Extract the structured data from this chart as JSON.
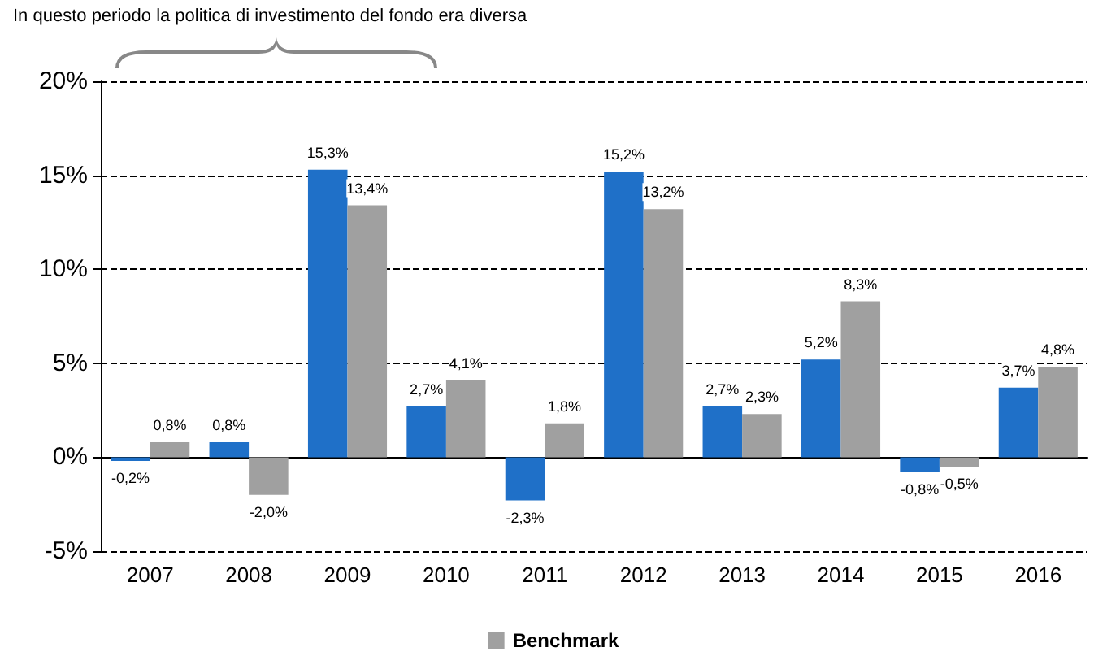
{
  "chart_data": {
    "type": "bar",
    "annotations": [
      "In questo periodo la politica di investimento del fondo era diversa"
    ],
    "categories": [
      "2007",
      "2008",
      "2009",
      "2010",
      "2011",
      "2012",
      "2013",
      "2014",
      "2015",
      "2016"
    ],
    "series": [
      {
        "color": "#1f70c8",
        "values": [
          -0.2,
          0.8,
          15.3,
          2.7,
          -2.3,
          15.2,
          2.7,
          5.2,
          -0.8,
          3.7
        ],
        "value_labels": [
          "-0,2%",
          "0,8%",
          "15,3%",
          "2,7%",
          "-2,3%",
          "15,2%",
          "2,7%",
          "5,2%",
          "-0,8%",
          "3,7%"
        ]
      },
      {
        "name": "Benchmark",
        "color": "#a0a0a0",
        "values": [
          0.8,
          -2.0,
          13.4,
          4.1,
          1.8,
          13.2,
          2.3,
          8.3,
          -0.5,
          4.8
        ],
        "value_labels": [
          "0,8%",
          "-2,0%",
          "13,4%",
          "4,1%",
          "1,8%",
          "13,2%",
          "2,3%",
          "8,3%",
          "-0,5%",
          "4,8%"
        ]
      }
    ],
    "ylim": [
      -5,
      20
    ],
    "yticks": [
      {
        "value": -5,
        "label": "-5%"
      },
      {
        "value": 0,
        "label": "0%"
      },
      {
        "value": 5,
        "label": "5%"
      },
      {
        "value": 10,
        "label": "10%"
      },
      {
        "value": 15,
        "label": "15%"
      },
      {
        "value": 20,
        "label": "20%"
      }
    ],
    "grid": "y",
    "legend": "bottom"
  }
}
